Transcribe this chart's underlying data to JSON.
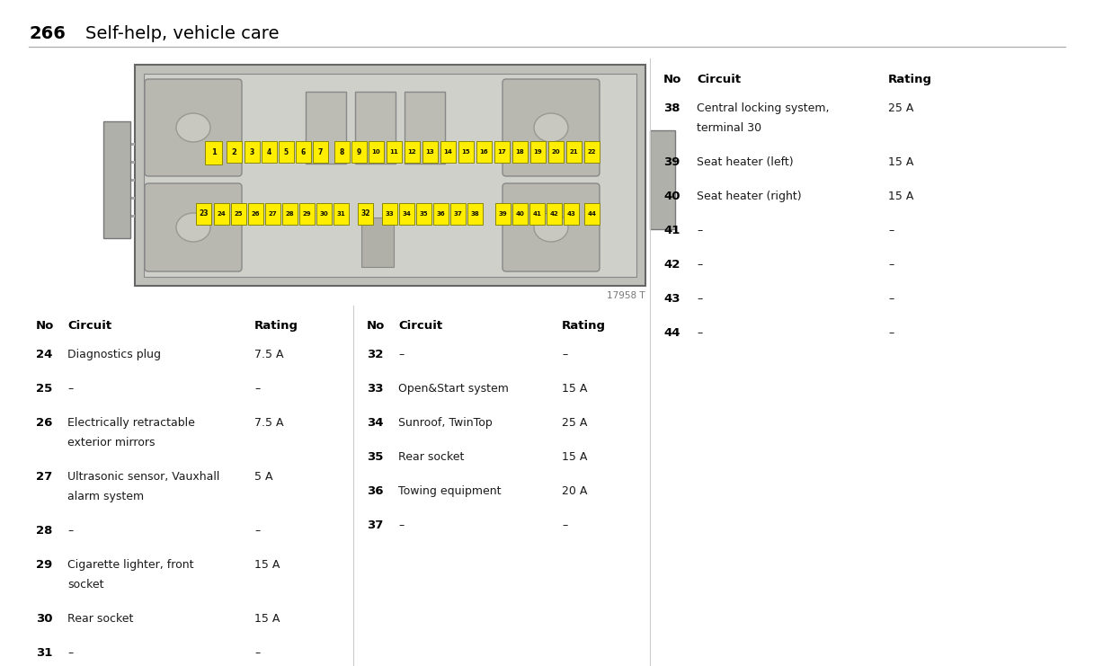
{
  "page_number": "266",
  "page_title": "Self-help, vehicle care",
  "image_ref": "17958 T",
  "bg_color": "#ffffff",
  "text_color": "#1a1a1a",
  "bold_color": "#000000",
  "divider_color": "#aaaaaa",
  "col1_header": {
    "no": "No",
    "circuit": "Circuit",
    "rating": "Rating"
  },
  "col1_rows": [
    {
      "no": "24",
      "circuit": "Diagnostics plug",
      "circuit2": "",
      "rating": "7.5 A"
    },
    {
      "no": "25",
      "circuit": "–",
      "circuit2": "",
      "rating": "–"
    },
    {
      "no": "26",
      "circuit": "Electrically retractable",
      "circuit2": "exterior mirrors",
      "rating": "7.5 A"
    },
    {
      "no": "27",
      "circuit": "Ultrasonic sensor, Vauxhall",
      "circuit2": "alarm system",
      "rating": "5 A"
    },
    {
      "no": "28",
      "circuit": "–",
      "circuit2": "",
      "rating": "–"
    },
    {
      "no": "29",
      "circuit": "Cigarette lighter, front",
      "circuit2": "socket",
      "rating": "15 A"
    },
    {
      "no": "30",
      "circuit": "Rear socket",
      "circuit2": "",
      "rating": "15 A"
    },
    {
      "no": "31",
      "circuit": "–",
      "circuit2": "",
      "rating": "–"
    }
  ],
  "col2_header": {
    "no": "No",
    "circuit": "Circuit",
    "rating": "Rating"
  },
  "col2_rows": [
    {
      "no": "32",
      "circuit": "–",
      "circuit2": "",
      "rating": "–"
    },
    {
      "no": "33",
      "circuit": "Open&Start system",
      "circuit2": "",
      "rating": "15 A"
    },
    {
      "no": "34",
      "circuit": "Sunroof, TwinTop",
      "circuit2": "",
      "rating": "25 A"
    },
    {
      "no": "35",
      "circuit": "Rear socket",
      "circuit2": "",
      "rating": "15 A"
    },
    {
      "no": "36",
      "circuit": "Towing equipment",
      "circuit2": "",
      "rating": "20 A"
    },
    {
      "no": "37",
      "circuit": "–",
      "circuit2": "",
      "rating": "–"
    }
  ],
  "col3_header": {
    "no": "No",
    "circuit": "Circuit",
    "rating": "Rating"
  },
  "col3_rows": [
    {
      "no": "38",
      "circuit": "Central locking system,",
      "circuit2": "terminal 30",
      "rating": "25 A"
    },
    {
      "no": "39",
      "circuit": "Seat heater (left)",
      "circuit2": "",
      "rating": "15 A"
    },
    {
      "no": "40",
      "circuit": "Seat heater (right)",
      "circuit2": "",
      "rating": "15 A"
    },
    {
      "no": "41",
      "circuit": "–",
      "circuit2": "",
      "rating": "–"
    },
    {
      "no": "42",
      "circuit": "–",
      "circuit2": "",
      "rating": "–"
    },
    {
      "no": "43",
      "circuit": "–",
      "circuit2": "",
      "rating": "–"
    },
    {
      "no": "44",
      "circuit": "–",
      "circuit2": "",
      "rating": "–"
    }
  ],
  "yellow_color": "#FFEE00",
  "fuse_border_color": "#888800"
}
